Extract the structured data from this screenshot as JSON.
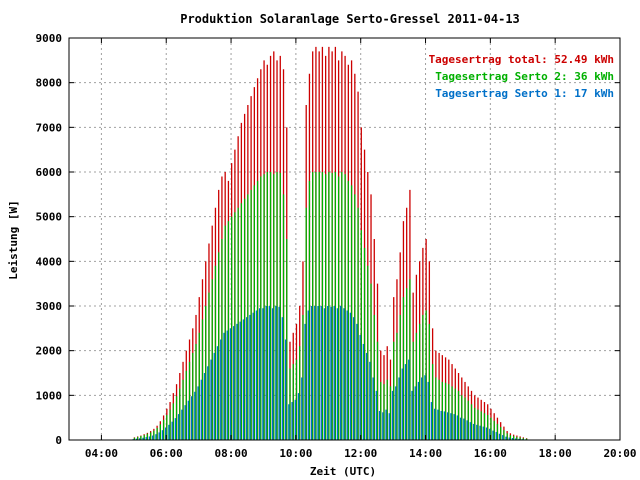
{
  "chart_data": {
    "type": "bar",
    "title": "Produktion Solaranlage Serto-Gressel 2011-04-13",
    "xlabel": "Zeit (UTC)",
    "ylabel": "Leistung [W]",
    "xlim": [
      3.0,
      20.0
    ],
    "ylim": [
      0,
      9000
    ],
    "xticks": [
      {
        "v": 4,
        "label": "04:00"
      },
      {
        "v": 6,
        "label": "06:00"
      },
      {
        "v": 8,
        "label": "08:00"
      },
      {
        "v": 10,
        "label": "10:00"
      },
      {
        "v": 12,
        "label": "12:00"
      },
      {
        "v": 14,
        "label": "14:00"
      },
      {
        "v": 16,
        "label": "16:00"
      },
      {
        "v": 18,
        "label": "18:00"
      },
      {
        "v": 20,
        "label": "20:00"
      }
    ],
    "yticks": [
      0,
      1000,
      2000,
      3000,
      4000,
      5000,
      6000,
      7000,
      8000,
      9000
    ],
    "grid": true,
    "legend_position": "top-right",
    "series": [
      {
        "key": "total",
        "legend": "Tagesertrag total: 52.49 kWh",
        "color": "#cc0000"
      },
      {
        "key": "s2",
        "legend": "Tagesertrag Serto 2: 36 kWh",
        "color": "#00b000"
      },
      {
        "key": "s1",
        "legend": "Tagesertrag Serto 1: 17 kWh",
        "color": "#0070c8"
      }
    ],
    "x": [
      5.0,
      5.1,
      5.2,
      5.3,
      5.4,
      5.5,
      5.6,
      5.7,
      5.8,
      5.9,
      6.0,
      6.1,
      6.2,
      6.3,
      6.4,
      6.5,
      6.6,
      6.7,
      6.8,
      6.9,
      7.0,
      7.1,
      7.2,
      7.3,
      7.4,
      7.5,
      7.6,
      7.7,
      7.8,
      7.9,
      8.0,
      8.1,
      8.2,
      8.3,
      8.4,
      8.5,
      8.6,
      8.7,
      8.8,
      8.9,
      9.0,
      9.1,
      9.2,
      9.3,
      9.4,
      9.5,
      9.6,
      9.7,
      9.8,
      9.9,
      10.0,
      10.1,
      10.2,
      10.3,
      10.4,
      10.5,
      10.6,
      10.7,
      10.8,
      10.9,
      11.0,
      11.1,
      11.2,
      11.3,
      11.4,
      11.5,
      11.6,
      11.7,
      11.8,
      11.9,
      12.0,
      12.1,
      12.2,
      12.3,
      12.4,
      12.5,
      12.6,
      12.7,
      12.8,
      12.9,
      13.0,
      13.1,
      13.2,
      13.3,
      13.4,
      13.5,
      13.6,
      13.7,
      13.8,
      13.9,
      14.0,
      14.1,
      14.2,
      14.3,
      14.4,
      14.5,
      14.6,
      14.7,
      14.8,
      14.9,
      15.0,
      15.1,
      15.2,
      15.3,
      15.4,
      15.5,
      15.6,
      15.7,
      15.8,
      15.9,
      16.0,
      16.1,
      16.2,
      16.3,
      16.4,
      16.5,
      16.6,
      16.7,
      16.8,
      16.9,
      17.0,
      17.1,
      17.2,
      17.3,
      17.4,
      17.5,
      17.6,
      17.7
    ],
    "total": [
      60,
      80,
      100,
      130,
      160,
      200,
      250,
      320,
      420,
      550,
      700,
      850,
      1050,
      1250,
      1500,
      1750,
      2000,
      2250,
      2500,
      2800,
      3200,
      3600,
      4000,
      4400,
      4800,
      5200,
      5600,
      5900,
      6000,
      5800,
      6200,
      6500,
      6800,
      7100,
      7300,
      7500,
      7700,
      7900,
      8100,
      8300,
      8500,
      8400,
      8600,
      8700,
      8500,
      8600,
      8300,
      7000,
      2200,
      2400,
      2600,
      3000,
      4000,
      7500,
      8200,
      8700,
      8800,
      8700,
      8800,
      8600,
      8800,
      8700,
      8800,
      8500,
      8700,
      8600,
      8400,
      8500,
      8200,
      7800,
      7000,
      6500,
      6000,
      5500,
      4500,
      3500,
      2000,
      1900,
      2100,
      1800,
      3200,
      3600,
      4200,
      4900,
      5200,
      5600,
      3300,
      3700,
      4000,
      4300,
      4500,
      4000,
      2500,
      2000,
      1950,
      1900,
      1850,
      1800,
      1700,
      1600,
      1500,
      1400,
      1300,
      1200,
      1100,
      1000,
      950,
      900,
      850,
      800,
      700,
      600,
      500,
      400,
      300,
      200,
      150,
      120,
      100,
      80,
      60,
      40
    ],
    "s2": [
      50,
      70,
      90,
      110,
      140,
      170,
      210,
      270,
      350,
      450,
      560,
      680,
      820,
      980,
      1150,
      1350,
      1550,
      1750,
      1950,
      2150,
      2400,
      2700,
      3000,
      3300,
      3600,
      3900,
      4200,
      4500,
      4800,
      4900,
      5000,
      5100,
      5200,
      5300,
      5400,
      5500,
      5600,
      5700,
      5800,
      5900,
      5950,
      6000,
      6000,
      5950,
      6000,
      5980,
      5500,
      4500,
      1600,
      1700,
      1800,
      2100,
      2800,
      5200,
      5800,
      6000,
      6000,
      6000,
      6000,
      5950,
      6000,
      5980,
      6000,
      5900,
      6000,
      5950,
      5800,
      5700,
      5500,
      5200,
      4700,
      4300,
      3900,
      3500,
      2800,
      2200,
      1300,
      1250,
      1350,
      1200,
      2200,
      2400,
      2800,
      3200,
      3400,
      3600,
      2200,
      2400,
      2600,
      2800,
      2900,
      2600,
      1700,
      1400,
      1350,
      1300,
      1280,
      1250,
      1200,
      1150,
      1100,
      1000,
      950,
      880,
      800,
      720,
      680,
      640,
      600,
      560,
      500,
      430,
      360,
      290,
      220,
      150,
      110,
      90,
      70,
      55,
      40,
      30
    ],
    "s1": [
      20,
      30,
      40,
      50,
      65,
      80,
      100,
      130,
      170,
      220,
      280,
      340,
      410,
      490,
      580,
      680,
      780,
      880,
      980,
      1080,
      1200,
      1350,
      1500,
      1650,
      1800,
      1950,
      2100,
      2250,
      2400,
      2450,
      2500,
      2550,
      2600,
      2650,
      2700,
      2750,
      2800,
      2850,
      2900,
      2950,
      2950,
      3000,
      3000,
      2950,
      3000,
      2980,
      2750,
      2250,
      800,
      850,
      900,
      1050,
      1400,
      2600,
      2900,
      3000,
      3000,
      3000,
      3000,
      2950,
      3000,
      2980,
      3000,
      2950,
      3000,
      2950,
      2900,
      2850,
      2750,
      2600,
      2350,
      2150,
      1950,
      1750,
      1400,
      1100,
      650,
      620,
      680,
      600,
      1100,
      1200,
      1400,
      1600,
      1700,
      1800,
      1100,
      1200,
      1300,
      1400,
      1450,
      1300,
      850,
      700,
      680,
      650,
      640,
      620,
      600,
      580,
      550,
      500,
      480,
      440,
      400,
      360,
      340,
      320,
      300,
      280,
      250,
      210,
      180,
      140,
      110,
      75,
      55,
      45,
      35,
      27,
      20,
      15
    ]
  }
}
